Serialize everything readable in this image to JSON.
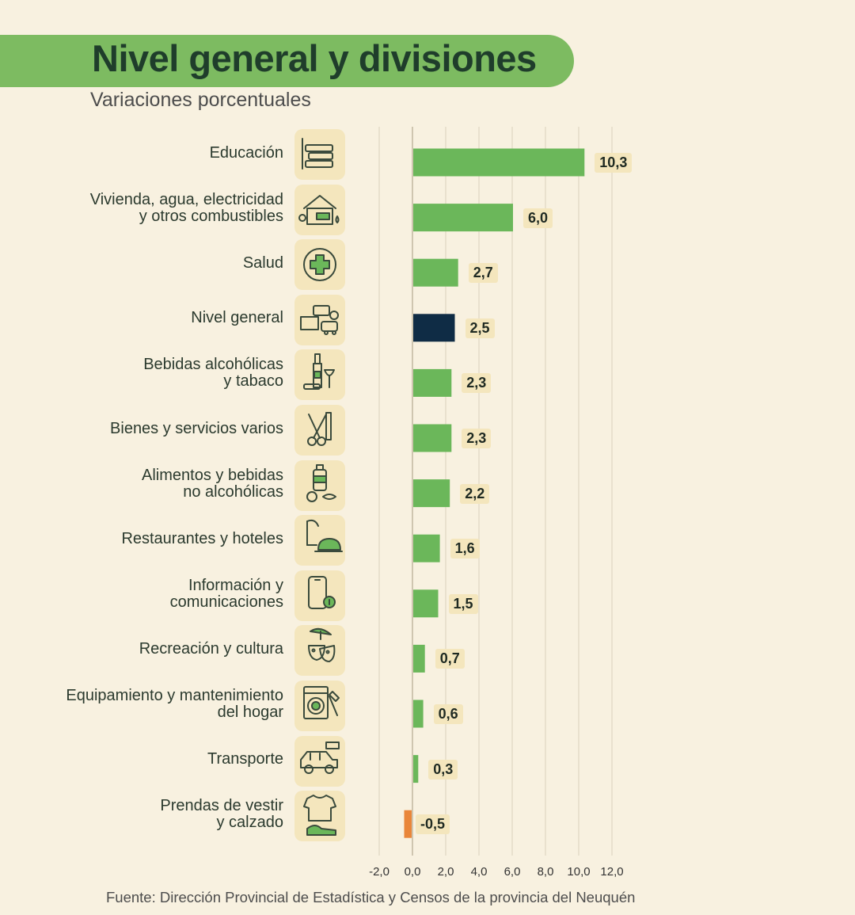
{
  "header": {
    "title": "Nivel general y divisiones",
    "subtitle": "Variaciones porcentuales"
  },
  "footer": {
    "source": "Fuente: Dirección Provincial de Estadística y Censos de la provincia del Neuquén"
  },
  "colors": {
    "positive": "#6bb75a",
    "general": "#0f2c45",
    "negative": "#e9863a",
    "banner": "#7dbb61"
  },
  "chart_data": {
    "type": "bar",
    "orientation": "horizontal",
    "title": "Nivel general y divisiones",
    "subtitle": "Variaciones porcentuales",
    "xlabel": "",
    "ylabel": "",
    "xlim": [
      -2.0,
      12.0
    ],
    "tick_values": [
      -2.0,
      0.0,
      2.0,
      4.0,
      6.0,
      8.0,
      10.0,
      12.0
    ],
    "tick_labels": [
      "-2,0",
      "0,0",
      "2,0",
      "4,0",
      "6,0",
      "8,0",
      "10,0",
      "12,0"
    ],
    "grid": true,
    "categories": [
      {
        "label": "Educación",
        "value": 10.3,
        "display": "10,3",
        "icon": "books-icon",
        "kind": "division"
      },
      {
        "label": "Vivienda, agua, electricidad\ny otros combustibles",
        "value": 6.0,
        "display": "6,0",
        "icon": "house-icon",
        "kind": "division"
      },
      {
        "label": "Salud",
        "value": 2.7,
        "display": "2,7",
        "icon": "health-cross-icon",
        "kind": "division"
      },
      {
        "label": "Nivel general",
        "value": 2.5,
        "display": "2,5",
        "icon": "general-basket-icon",
        "kind": "general"
      },
      {
        "label": "Bebidas alcohólicas\ny tabaco",
        "value": 2.3,
        "display": "2,3",
        "icon": "wine-bottle-icon",
        "kind": "division"
      },
      {
        "label": "Bienes y servicios varios",
        "value": 2.3,
        "display": "2,3",
        "icon": "scissors-comb-icon",
        "kind": "division"
      },
      {
        "label": "Alimentos y bebidas\nno alcohólicas",
        "value": 2.2,
        "display": "2,2",
        "icon": "food-bottle-icon",
        "kind": "division"
      },
      {
        "label": "Restaurantes y hoteles",
        "value": 1.6,
        "display": "1,6",
        "icon": "hotel-bell-icon",
        "kind": "division"
      },
      {
        "label": "Información y\ncomunicaciones",
        "value": 1.5,
        "display": "1,5",
        "icon": "smartphone-info-icon",
        "kind": "division"
      },
      {
        "label": "Recreación y cultura",
        "value": 0.7,
        "display": "0,7",
        "icon": "theater-masks-icon",
        "kind": "division"
      },
      {
        "label": "Equipamiento y mantenimiento\ndel hogar",
        "value": 0.6,
        "display": "0,6",
        "icon": "washing-machine-icon",
        "kind": "division"
      },
      {
        "label": "Transporte",
        "value": 0.3,
        "display": "0,3",
        "icon": "car-icon",
        "kind": "division"
      },
      {
        "label": "Prendas de vestir\ny calzado",
        "value": -0.5,
        "display": "-0,5",
        "icon": "tshirt-shoe-icon",
        "kind": "division"
      }
    ]
  }
}
